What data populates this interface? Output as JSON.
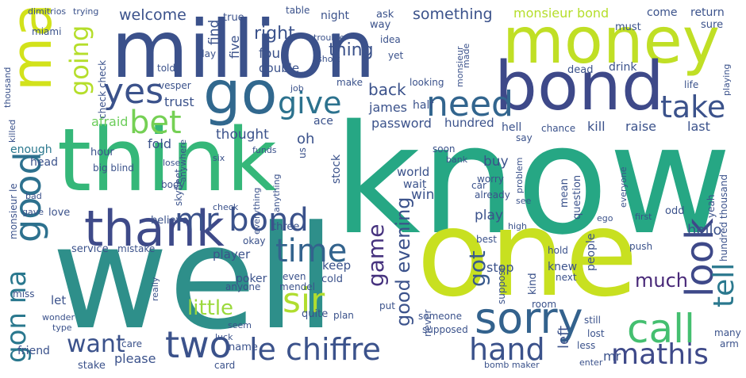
{
  "words": [
    {
      "text": "know",
      "color": "#26a784"
    },
    {
      "text": "well",
      "color": "#2e8f8a"
    },
    {
      "text": "one",
      "color": "#c8e020"
    },
    {
      "text": "million",
      "color": "#3b518b"
    },
    {
      "text": "think",
      "color": "#35b779"
    },
    {
      "text": "money",
      "color": "#c0df25"
    },
    {
      "text": "bond",
      "color": "#3e4989"
    },
    {
      "text": "man",
      "color": "#d2e21b"
    },
    {
      "text": "go",
      "color": "#31688e"
    },
    {
      "text": "thank",
      "color": "#3e4a89"
    },
    {
      "text": "sorry",
      "color": "#33628d"
    },
    {
      "text": "le chiffre",
      "color": "#3b528b"
    },
    {
      "text": "yes",
      "color": "#3b528b"
    },
    {
      "text": "need",
      "color": "#32658e"
    },
    {
      "text": "give",
      "color": "#2c728e"
    },
    {
      "text": "bet",
      "color": "#75d054"
    },
    {
      "text": "take",
      "color": "#3b528b"
    },
    {
      "text": "good",
      "color": "#2d718e"
    },
    {
      "text": "going",
      "color": "#b5de2b"
    },
    {
      "text": "mr bond",
      "color": "#3b528b"
    },
    {
      "text": "time",
      "color": "#33638d"
    },
    {
      "text": "sir",
      "color": "#b0dd2f"
    },
    {
      "text": "look",
      "color": "#3e4989"
    },
    {
      "text": "tell",
      "color": "#2a788e"
    },
    {
      "text": "call",
      "color": "#44bf70"
    },
    {
      "text": "want",
      "color": "#3b528b"
    },
    {
      "text": "two",
      "color": "#3b528b"
    },
    {
      "text": "hand",
      "color": "#3b528b"
    },
    {
      "text": "mathis",
      "color": "#3e4989"
    },
    {
      "text": "gon na",
      "color": "#2a788e"
    },
    {
      "text": "game",
      "color": "#46327e"
    },
    {
      "text": "little",
      "color": "#9bd93c"
    },
    {
      "text": "good evening",
      "color": "#3b528b"
    },
    {
      "text": "got",
      "color": "#38598c"
    },
    {
      "text": "much",
      "color": "#482878"
    },
    {
      "text": "right",
      "color": "#3b528b"
    },
    {
      "text": "thing",
      "color": "#3b528b"
    },
    {
      "text": "back",
      "color": "#3b528b"
    },
    {
      "text": "something",
      "color": "#3b528b"
    },
    {
      "text": "welcome",
      "color": "#3b528b"
    },
    {
      "text": "monsieur bond",
      "color": "#b5de2b"
    },
    {
      "text": "five",
      "color": "#3b528b"
    },
    {
      "text": "four",
      "color": "#3b528b"
    },
    {
      "text": "find",
      "color": "#3b528b"
    },
    {
      "text": "double",
      "color": "#3b528b"
    },
    {
      "text": "james",
      "color": "#3b528b"
    },
    {
      "text": "password",
      "color": "#3b528b"
    },
    {
      "text": "hundred",
      "color": "#3b528b"
    },
    {
      "text": "ace",
      "color": "#3b528b"
    },
    {
      "text": "oh",
      "color": "#3b528b"
    },
    {
      "text": "thought",
      "color": "#3b528b"
    },
    {
      "text": "trust",
      "color": "#3b528b"
    },
    {
      "text": "afraid",
      "color": "#6ccd5a"
    },
    {
      "text": "fold",
      "color": "#3b528b"
    },
    {
      "text": "hour",
      "color": "#3b528b"
    },
    {
      "text": "head",
      "color": "#3b528b"
    },
    {
      "text": "enough",
      "color": "#2a788e"
    },
    {
      "text": "player",
      "color": "#3b528b"
    },
    {
      "text": "poker",
      "color": "#3b528b"
    },
    {
      "text": "keep",
      "color": "#3b528b"
    },
    {
      "text": "let",
      "color": "#3b528b"
    },
    {
      "text": "believe",
      "color": "#3b528b"
    },
    {
      "text": "love",
      "color": "#3b528b"
    },
    {
      "text": "service",
      "color": "#3b528b"
    },
    {
      "text": "mistake",
      "color": "#3b528b"
    },
    {
      "text": "hello",
      "color": "#3b528b"
    },
    {
      "text": "kill",
      "color": "#3b528b"
    },
    {
      "text": "raise",
      "color": "#3b528b"
    },
    {
      "text": "last",
      "color": "#3b528b"
    },
    {
      "text": "hell",
      "color": "#3b528b"
    },
    {
      "text": "chance",
      "color": "#3b528b"
    },
    {
      "text": "say",
      "color": "#3b528b"
    },
    {
      "text": "buy",
      "color": "#3b528b"
    },
    {
      "text": "world",
      "color": "#3b528b"
    },
    {
      "text": "win",
      "color": "#3b528b"
    },
    {
      "text": "wait",
      "color": "#3b528b"
    },
    {
      "text": "play",
      "color": "#3b528b"
    },
    {
      "text": "stop",
      "color": "#3b528b"
    },
    {
      "text": "people",
      "color": "#3b528b"
    },
    {
      "text": "stock",
      "color": "#3b528b"
    },
    {
      "text": "put",
      "color": "#3b528b"
    },
    {
      "text": "plan",
      "color": "#3b528b"
    },
    {
      "text": "quite",
      "color": "#3b528b"
    },
    {
      "text": "cold",
      "color": "#3b528b"
    },
    {
      "text": "even",
      "color": "#3b528b"
    },
    {
      "text": "mendel",
      "color": "#3b528b"
    },
    {
      "text": "anyone",
      "color": "#3b528b"
    },
    {
      "text": "okay",
      "color": "#3b528b"
    },
    {
      "text": "three",
      "color": "#3b528b"
    },
    {
      "text": "everything",
      "color": "#3b528b"
    },
    {
      "text": "anything",
      "color": "#3b528b"
    },
    {
      "text": "us",
      "color": "#3b528b"
    },
    {
      "text": "skyfleet",
      "color": "#3b528b"
    },
    {
      "text": "body",
      "color": "#3b528b"
    },
    {
      "text": "big blind",
      "color": "#3b528b"
    },
    {
      "text": "lose",
      "color": "#3b528b"
    },
    {
      "text": "check",
      "color": "#3b528b"
    },
    {
      "text": "yet",
      "color": "#3b528b"
    },
    {
      "text": "idea",
      "color": "#3b528b"
    },
    {
      "text": "short",
      "color": "#3b528b"
    },
    {
      "text": "trouble",
      "color": "#3b528b"
    },
    {
      "text": "table",
      "color": "#3b528b"
    },
    {
      "text": "night",
      "color": "#3b528b"
    },
    {
      "text": "true",
      "color": "#3b528b"
    },
    {
      "text": "ask",
      "color": "#3b528b"
    },
    {
      "text": "way",
      "color": "#3b528b"
    },
    {
      "text": "must",
      "color": "#3b528b"
    },
    {
      "text": "come",
      "color": "#3b528b"
    },
    {
      "text": "return",
      "color": "#3b528b"
    },
    {
      "text": "sure",
      "color": "#3b528b"
    },
    {
      "text": "drink",
      "color": "#3b528b"
    },
    {
      "text": "dead",
      "color": "#3b528b"
    },
    {
      "text": "knew",
      "color": "#3b528b"
    },
    {
      "text": "life",
      "color": "#3b528b"
    },
    {
      "text": "playing",
      "color": "#3b528b"
    },
    {
      "text": "thousand",
      "color": "#3b528b"
    },
    {
      "text": "hundred thousand",
      "color": "#3b528b"
    },
    {
      "text": "yeah",
      "color": "#3b528b"
    },
    {
      "text": "odd",
      "color": "#3b528b"
    },
    {
      "text": "first",
      "color": "#3b528b"
    },
    {
      "text": "ego",
      "color": "#3b528b"
    },
    {
      "text": "push",
      "color": "#3b528b"
    },
    {
      "text": "hold",
      "color": "#3b528b"
    },
    {
      "text": "high",
      "color": "#3b528b"
    },
    {
      "text": "mean",
      "color": "#3b528b"
    },
    {
      "text": "question",
      "color": "#3b528b"
    },
    {
      "text": "everyone",
      "color": "#3b528b"
    },
    {
      "text": "problem",
      "color": "#3b528b"
    },
    {
      "text": "worry",
      "color": "#3b528b"
    },
    {
      "text": "already",
      "color": "#3b528b"
    },
    {
      "text": "car",
      "color": "#3b528b"
    },
    {
      "text": "see",
      "color": "#3b528b"
    },
    {
      "text": "bank",
      "color": "#3b528b"
    },
    {
      "text": "soon",
      "color": "#3b528b"
    },
    {
      "text": "kind",
      "color": "#3b528b"
    },
    {
      "text": "room",
      "color": "#3b528b"
    },
    {
      "text": "next",
      "color": "#3b528b"
    },
    {
      "text": "left",
      "color": "#3b528b"
    },
    {
      "text": "mr",
      "color": "#3b528b"
    },
    {
      "text": "suppose",
      "color": "#3b528b"
    },
    {
      "text": "supposed",
      "color": "#3b528b"
    },
    {
      "text": "someone",
      "color": "#3b528b"
    },
    {
      "text": "never",
      "color": "#3b528b"
    },
    {
      "text": "lost",
      "color": "#3b528b"
    },
    {
      "text": "still",
      "color": "#3b528b"
    },
    {
      "text": "less",
      "color": "#3b528b"
    },
    {
      "text": "enter",
      "color": "#3b528b"
    },
    {
      "text": "bomb maker",
      "color": "#3b528b"
    },
    {
      "text": "please",
      "color": "#3b528b"
    },
    {
      "text": "card",
      "color": "#3b528b"
    },
    {
      "text": "stake",
      "color": "#3b528b"
    },
    {
      "text": "name",
      "color": "#3b528b"
    },
    {
      "text": "luck",
      "color": "#3b528b"
    },
    {
      "text": "care",
      "color": "#3b528b"
    },
    {
      "text": "really",
      "color": "#3b528b"
    },
    {
      "text": "seem",
      "color": "#3b528b"
    },
    {
      "text": "friend",
      "color": "#3b528b"
    },
    {
      "text": "type",
      "color": "#3b528b"
    },
    {
      "text": "wonder",
      "color": "#3b528b"
    },
    {
      "text": "miss",
      "color": "#3b528b"
    },
    {
      "text": "monsieur le",
      "color": "#3b528b"
    },
    {
      "text": "gave",
      "color": "#3b528b"
    },
    {
      "text": "bad",
      "color": "#3b528b"
    },
    {
      "text": "killed",
      "color": "#3b528b"
    },
    {
      "text": "six",
      "color": "#3b528b"
    },
    {
      "text": "anywhere",
      "color": "#3b528b"
    },
    {
      "text": "funds",
      "color": "#3b528b"
    },
    {
      "text": "job",
      "color": "#3b528b"
    },
    {
      "text": "make",
      "color": "#3b528b"
    },
    {
      "text": "looking",
      "color": "#3b528b"
    },
    {
      "text": "half",
      "color": "#3b528b"
    },
    {
      "text": "made",
      "color": "#3b528b"
    },
    {
      "text": "monsieur",
      "color": "#3b528b"
    },
    {
      "text": "vesper",
      "color": "#3b528b"
    },
    {
      "text": "told",
      "color": "#3b528b"
    },
    {
      "text": "day",
      "color": "#3b528b"
    },
    {
      "text": "miami",
      "color": "#3b528b"
    },
    {
      "text": "dimitrios",
      "color": "#3b528b"
    },
    {
      "text": "trying",
      "color": "#3b528b"
    },
    {
      "text": "check check",
      "color": "#3b528b"
    },
    {
      "text": "best",
      "color": "#3b528b"
    },
    {
      "text": "many",
      "color": "#3b528b"
    },
    {
      "text": "arm",
      "color": "#3b528b"
    }
  ]
}
